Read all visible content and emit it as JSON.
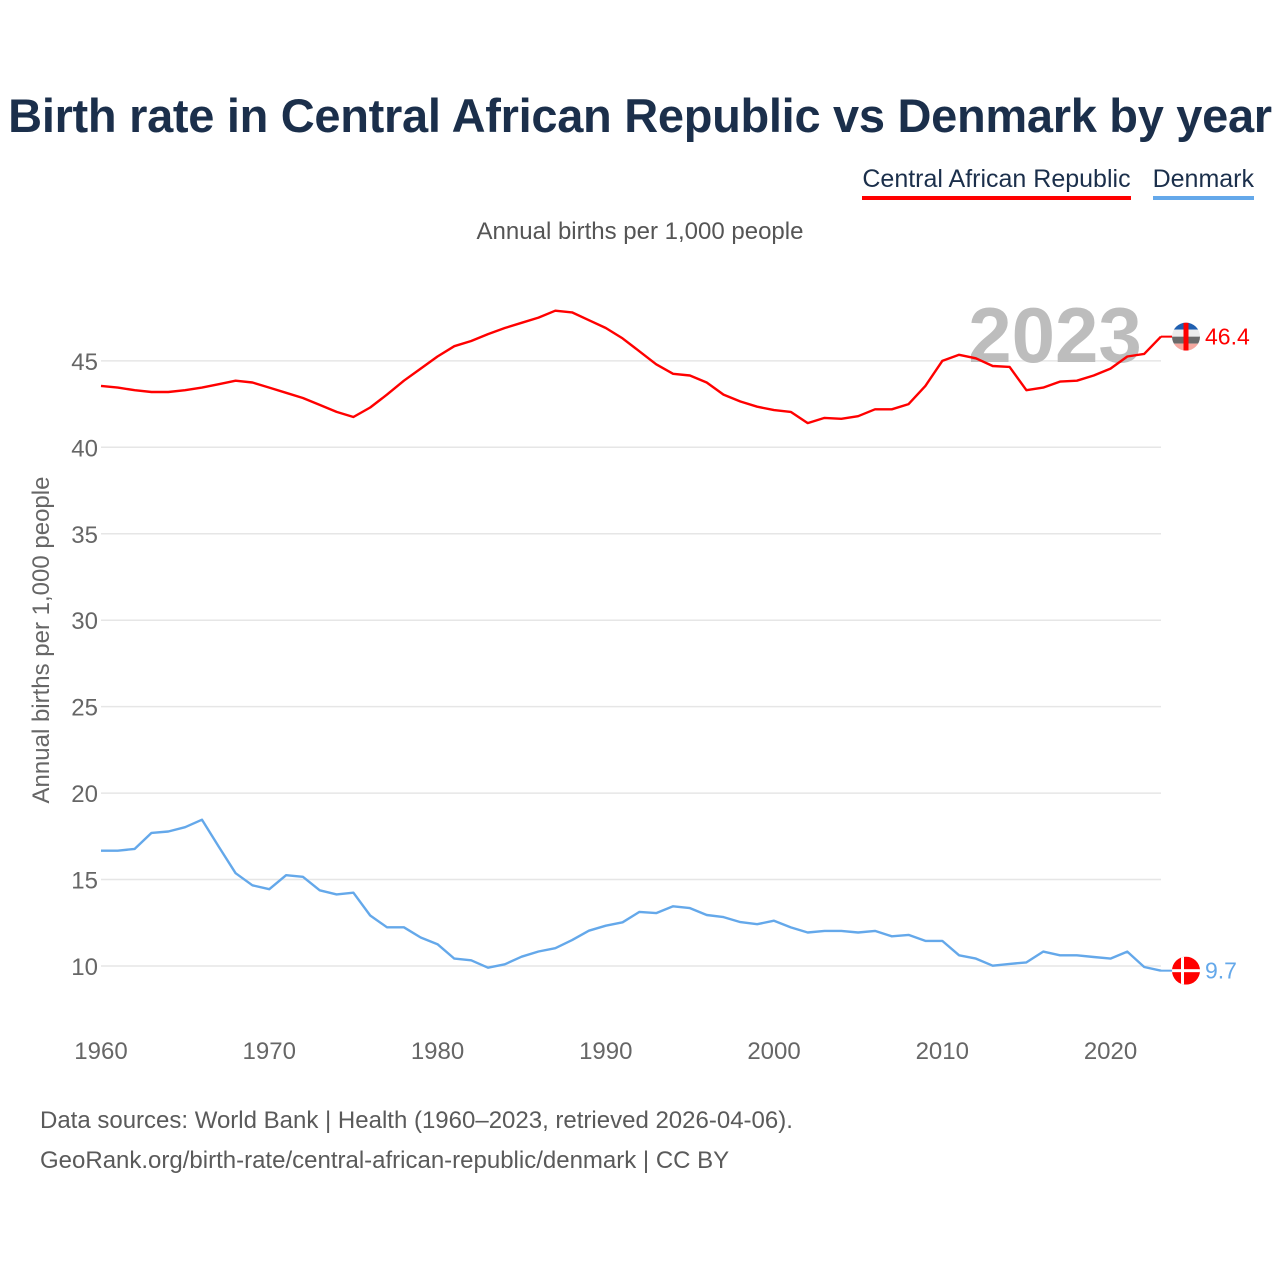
{
  "chart_data": {
    "type": "line",
    "title": "Birth rate in Central African Republic vs Denmark by year",
    "subtitle": "Annual births per 1,000 people",
    "xlabel": "",
    "ylabel": "Annual births per 1,000 people",
    "xlim": [
      1960,
      2023
    ],
    "ylim": [
      7,
      48.5
    ],
    "yticks": [
      10,
      15,
      20,
      25,
      30,
      35,
      40,
      45
    ],
    "xticks": [
      1960,
      1970,
      1980,
      1990,
      2000,
      2010,
      2020
    ],
    "grid": true,
    "legend_position": "top-right",
    "current_year_label": "2023",
    "x": [
      1960,
      1961,
      1962,
      1963,
      1964,
      1965,
      1966,
      1967,
      1968,
      1969,
      1970,
      1971,
      1972,
      1973,
      1974,
      1975,
      1976,
      1977,
      1978,
      1979,
      1980,
      1981,
      1982,
      1983,
      1984,
      1985,
      1986,
      1987,
      1988,
      1989,
      1990,
      1991,
      1992,
      1993,
      1994,
      1995,
      1996,
      1997,
      1998,
      1999,
      2000,
      2001,
      2002,
      2003,
      2004,
      2005,
      2006,
      2007,
      2008,
      2009,
      2010,
      2011,
      2012,
      2013,
      2014,
      2015,
      2016,
      2017,
      2018,
      2019,
      2020,
      2021,
      2022,
      2023
    ],
    "series": [
      {
        "name": "Central African Republic",
        "color": "#ff0000",
        "end_label": "46.4",
        "values": [
          43.55,
          43.45,
          43.3,
          43.2,
          43.2,
          43.3,
          43.45,
          43.65,
          43.85,
          43.75,
          43.45,
          43.15,
          42.85,
          42.45,
          42.05,
          41.75,
          42.3,
          43.05,
          43.85,
          44.55,
          45.25,
          45.85,
          46.15,
          46.55,
          46.9,
          47.2,
          47.5,
          47.9,
          47.8,
          47.35,
          46.9,
          46.3,
          45.55,
          44.8,
          44.25,
          44.15,
          43.75,
          43.05,
          42.65,
          42.35,
          42.15,
          42.05,
          41.4,
          41.7,
          41.65,
          41.8,
          42.2,
          42.2,
          42.5,
          43.55,
          45.0,
          45.35,
          45.15,
          44.7,
          44.65,
          43.3,
          43.45,
          43.8,
          43.85,
          44.15,
          44.55,
          45.25,
          45.4,
          46.4
        ]
      },
      {
        "name": "Denmark",
        "color": "#64a8ea",
        "end_label": "9.7",
        "values": [
          16.67,
          16.67,
          16.77,
          17.7,
          17.78,
          18.03,
          18.46,
          16.9,
          15.37,
          14.67,
          14.44,
          15.25,
          15.16,
          14.38,
          14.14,
          14.24,
          12.92,
          12.24,
          12.24,
          11.65,
          11.26,
          10.43,
          10.33,
          9.9,
          10.1,
          10.54,
          10.84,
          11.03,
          11.5,
          12.04,
          12.33,
          12.53,
          13.13,
          13.06,
          13.45,
          13.35,
          12.95,
          12.83,
          12.54,
          12.42,
          12.62,
          12.23,
          11.94,
          12.03,
          12.03,
          11.94,
          12.03,
          11.72,
          11.8,
          11.45,
          11.45,
          10.62,
          10.43,
          10.02,
          10.12,
          10.21,
          10.83,
          10.62,
          10.62,
          10.52,
          10.43,
          10.83,
          9.94,
          9.73
        ]
      }
    ]
  },
  "footer": {
    "line1": "Data sources: World Bank | Health (1960–2023, retrieved 2026-04-06).",
    "line2": "GeoRank.org/birth-rate/central-african-republic/denmark | CC BY"
  }
}
